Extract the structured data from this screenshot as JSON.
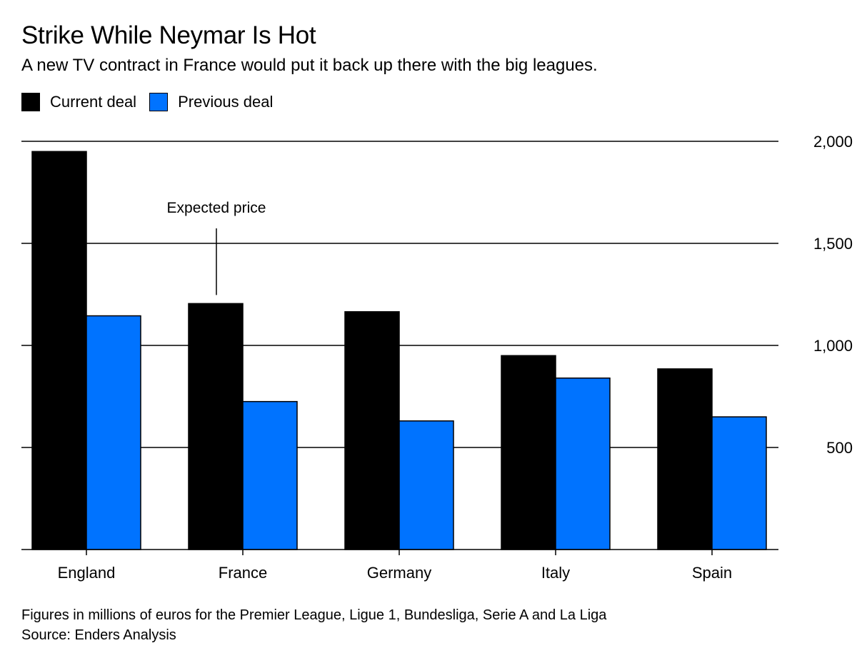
{
  "header": {
    "title": "Strike While Neymar Is Hot",
    "subtitle": "A new TV contract in France would put it back up there with the big leagues."
  },
  "colors": {
    "current": "#000000",
    "previous": "#0073ff",
    "grid": "#000000"
  },
  "chart_data": {
    "type": "bar",
    "title": "Strike While Neymar Is Hot",
    "subtitle": "A new TV contract in France would put it back up there with the big leagues.",
    "categories": [
      "England",
      "France",
      "Germany",
      "Italy",
      "Spain"
    ],
    "series": [
      {
        "name": "Current deal",
        "values": [
          1950,
          1205,
          1165,
          950,
          885
        ]
      },
      {
        "name": "Previous deal",
        "values": [
          1145,
          725,
          630,
          840,
          650
        ]
      }
    ],
    "xlabel": "",
    "ylabel": "",
    "ylim": [
      0,
      2000
    ],
    "yticks": [
      500,
      1000,
      1500,
      2000
    ],
    "ytick_labels": [
      "500",
      "1,000",
      "1,500",
      "2,000"
    ],
    "y_axis_side": "right",
    "grid": true,
    "legend_position": "top-left",
    "annotation": {
      "text": "Expected price",
      "category": "France",
      "series": "Current deal"
    }
  },
  "footer": {
    "note": "Figures in millions of euros for the Premier League, Ligue 1, Bundesliga, Serie A and La Liga",
    "source": "Source: Enders Analysis"
  }
}
